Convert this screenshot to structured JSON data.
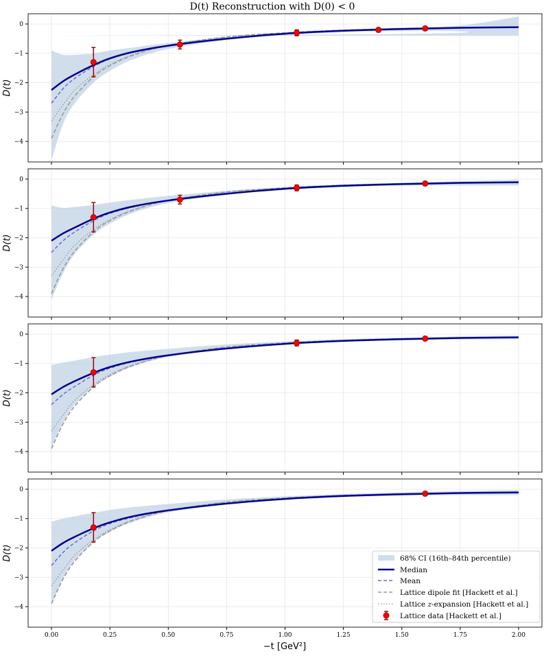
{
  "chart_data": {
    "type": "line",
    "title": "D(t) Reconstruction with D(0) < 0",
    "xlabel": "−t [GeV²]",
    "ylabel": "D(t)",
    "xlim": [
      -0.1,
      2.1
    ],
    "ylim": [
      -4.7,
      0.35
    ],
    "xticks": [
      "0.00",
      "0.25",
      "0.50",
      "0.75",
      "1.00",
      "1.25",
      "1.50",
      "1.75",
      "2.00"
    ],
    "xtick_values": [
      0,
      0.25,
      0.5,
      0.75,
      1,
      1.25,
      1.5,
      1.75,
      2
    ],
    "yticks": [
      "0",
      "−1",
      "−2",
      "−3",
      "−4"
    ],
    "ytick_values": [
      0,
      -1,
      -2,
      -3,
      -4
    ],
    "grid": true,
    "legend_placement": "lower-right",
    "legend": {
      "ci": "68% CI (16th–84th percentile)",
      "median": "Median",
      "mean": "Mean",
      "dipole": "Lattice dipole fit [Hackett et al.]",
      "zexp_pre": "Lattice ",
      "zexp_z": "z",
      "zexp_post": "-expansion [Hackett et al.]",
      "data": "Lattice data [Hackett et al.]"
    },
    "colors": {
      "ci": "#b0c8e0",
      "median": "#00008b",
      "mean": "#6a6acd",
      "dipole": "#999999",
      "zexp": "#999999",
      "data": "#ff0000",
      "errorbar": "#a00000"
    },
    "x": [
      0,
      0.05,
      0.1,
      0.18,
      0.25,
      0.35,
      0.5,
      0.75,
      1.0,
      1.25,
      1.5,
      1.75,
      2.0
    ],
    "dipole": [
      -3.9,
      -3.05,
      -2.45,
      -1.8,
      -1.42,
      -1.06,
      -0.73,
      -0.44,
      -0.3,
      -0.21,
      -0.16,
      -0.125,
      -0.1
    ],
    "zexpansion": [
      -3.3,
      -2.75,
      -2.25,
      -1.72,
      -1.38,
      -1.04,
      -0.72,
      -0.44,
      -0.3,
      -0.21,
      -0.16,
      -0.125,
      -0.1
    ],
    "panels": [
      {
        "median": [
          -2.25,
          -1.95,
          -1.72,
          -1.4,
          -1.17,
          -0.95,
          -0.74,
          -0.5,
          -0.33,
          -0.23,
          -0.17,
          -0.13,
          -0.11
        ],
        "mean": [
          -2.7,
          -2.2,
          -1.85,
          -1.45,
          -1.19,
          -0.96,
          -0.74,
          -0.5,
          -0.33,
          -0.23,
          -0.17,
          -0.13,
          -0.11
        ],
        "ci_upper": [
          -0.9,
          -1.05,
          -1.05,
          -1.0,
          -0.9,
          -0.8,
          -0.65,
          -0.45,
          -0.3,
          -0.2,
          -0.12,
          -0.05,
          0.25
        ],
        "ci_lower": [
          -4.65,
          -3.4,
          -2.7,
          -2.0,
          -1.6,
          -1.2,
          -0.85,
          -0.55,
          -0.38,
          -0.28,
          -0.24,
          -0.25,
          -0.4
        ],
        "data": [
          {
            "x": 0.18,
            "y": -1.3,
            "err": 0.5
          },
          {
            "x": 0.55,
            "y": -0.7,
            "err": 0.15
          },
          {
            "x": 1.05,
            "y": -0.3,
            "err": 0.1
          },
          {
            "x": 1.4,
            "y": -0.2,
            "err": 0.07
          },
          {
            "x": 1.6,
            "y": -0.15,
            "err": 0.07
          }
        ]
      },
      {
        "median": [
          -2.1,
          -1.85,
          -1.65,
          -1.35,
          -1.14,
          -0.93,
          -0.73,
          -0.5,
          -0.33,
          -0.23,
          -0.17,
          -0.13,
          -0.11
        ],
        "mean": [
          -2.5,
          -2.1,
          -1.8,
          -1.42,
          -1.17,
          -0.95,
          -0.73,
          -0.5,
          -0.33,
          -0.23,
          -0.17,
          -0.13,
          -0.11
        ],
        "ci_upper": [
          -0.9,
          -0.98,
          -0.95,
          -0.88,
          -0.8,
          -0.7,
          -0.57,
          -0.4,
          -0.27,
          -0.18,
          -0.12,
          -0.07,
          -0.02
        ],
        "ci_lower": [
          -4.1,
          -3.2,
          -2.55,
          -1.9,
          -1.52,
          -1.15,
          -0.82,
          -0.53,
          -0.37,
          -0.27,
          -0.22,
          -0.21,
          -0.22
        ],
        "data": [
          {
            "x": 0.18,
            "y": -1.3,
            "err": 0.5
          },
          {
            "x": 0.55,
            "y": -0.7,
            "err": 0.15
          },
          {
            "x": 1.05,
            "y": -0.3,
            "err": 0.1
          },
          {
            "x": 1.6,
            "y": -0.15,
            "err": 0.07
          }
        ]
      },
      {
        "median": [
          -2.05,
          -1.8,
          -1.6,
          -1.32,
          -1.12,
          -0.92,
          -0.72,
          -0.49,
          -0.33,
          -0.23,
          -0.17,
          -0.13,
          -0.11
        ],
        "mean": [
          -2.4,
          -2.05,
          -1.78,
          -1.4,
          -1.16,
          -0.94,
          -0.72,
          -0.49,
          -0.33,
          -0.23,
          -0.17,
          -0.13,
          -0.11
        ],
        "ci_upper": [
          -1.05,
          -0.97,
          -0.9,
          -0.78,
          -0.7,
          -0.6,
          -0.5,
          -0.35,
          -0.25,
          -0.17,
          -0.12,
          -0.08,
          -0.05
        ],
        "ci_lower": [
          -3.85,
          -3.0,
          -2.4,
          -1.8,
          -1.45,
          -1.1,
          -0.78,
          -0.5,
          -0.35,
          -0.26,
          -0.21,
          -0.19,
          -0.18
        ],
        "data": [
          {
            "x": 0.18,
            "y": -1.3,
            "err": 0.5
          },
          {
            "x": 1.05,
            "y": -0.3,
            "err": 0.1
          },
          {
            "x": 1.6,
            "y": -0.15,
            "err": 0.07
          }
        ]
      },
      {
        "median": [
          -2.1,
          -1.83,
          -1.62,
          -1.33,
          -1.13,
          -0.92,
          -0.72,
          -0.49,
          -0.33,
          -0.23,
          -0.17,
          -0.13,
          -0.11
        ],
        "mean": [
          -2.6,
          -2.15,
          -1.82,
          -1.42,
          -1.17,
          -0.95,
          -0.72,
          -0.49,
          -0.33,
          -0.23,
          -0.17,
          -0.13,
          -0.11
        ],
        "ci_upper": [
          -1.1,
          -1.0,
          -0.92,
          -0.8,
          -0.71,
          -0.61,
          -0.5,
          -0.35,
          -0.24,
          -0.16,
          -0.1,
          -0.06,
          -0.03
        ],
        "ci_lower": [
          -3.9,
          -3.02,
          -2.42,
          -1.81,
          -1.46,
          -1.11,
          -0.79,
          -0.51,
          -0.36,
          -0.27,
          -0.22,
          -0.2,
          -0.2
        ],
        "data": [
          {
            "x": 0.18,
            "y": -1.3,
            "err": 0.5
          },
          {
            "x": 1.6,
            "y": -0.15,
            "err": 0.07
          }
        ]
      }
    ]
  }
}
